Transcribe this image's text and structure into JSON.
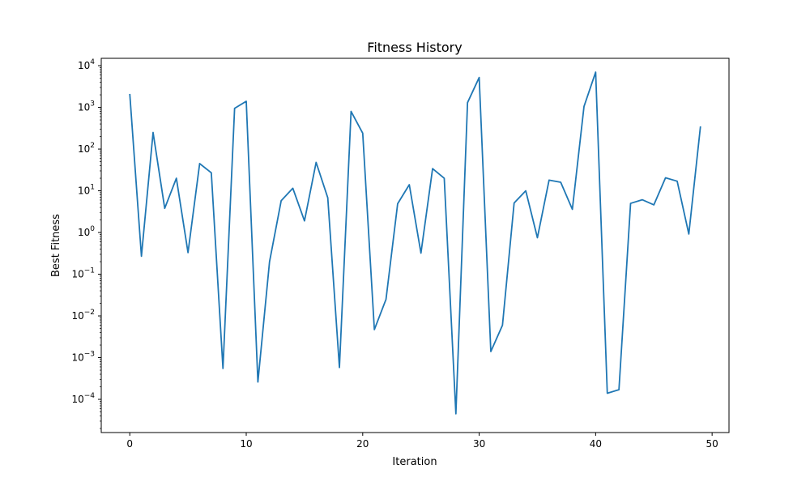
{
  "chart_data": {
    "type": "line",
    "title": "Fitness History",
    "xlabel": "Iteration",
    "ylabel": "Best Fitness",
    "xlim": [
      -2.45,
      51.45
    ],
    "ylim": [
      1.6e-05,
      15000
    ],
    "yscale": "log",
    "grid": false,
    "line_color": "#1f77b4",
    "x_ticks": [
      0,
      10,
      20,
      30,
      40,
      50
    ],
    "x_tick_labels": [
      "0",
      "10",
      "20",
      "30",
      "40",
      "50"
    ],
    "y_ticks": [
      {
        "value": 0.0001,
        "base": "10",
        "exp": "−4"
      },
      {
        "value": 0.001,
        "base": "10",
        "exp": "−3"
      },
      {
        "value": 0.01,
        "base": "10",
        "exp": "−2"
      },
      {
        "value": 0.1,
        "base": "10",
        "exp": "−1"
      },
      {
        "value": 1,
        "base": "10",
        "exp": "0"
      },
      {
        "value": 10,
        "base": "10",
        "exp": "1"
      },
      {
        "value": 100,
        "base": "10",
        "exp": "2"
      },
      {
        "value": 1000,
        "base": "10",
        "exp": "3"
      },
      {
        "value": 10000,
        "base": "10",
        "exp": "4"
      }
    ],
    "x": [
      0,
      1,
      2,
      3,
      4,
      5,
      6,
      7,
      8,
      9,
      10,
      11,
      12,
      13,
      14,
      15,
      16,
      17,
      18,
      19,
      20,
      21,
      22,
      23,
      24,
      25,
      26,
      27,
      28,
      29,
      30,
      31,
      32,
      33,
      34,
      35,
      36,
      37,
      38,
      39,
      40,
      41,
      42,
      43,
      44,
      45,
      46,
      47,
      48,
      49
    ],
    "values": [
      2100,
      0.27,
      250,
      3.8,
      20,
      0.33,
      45,
      27,
      0.00055,
      950,
      1400,
      0.00026,
      0.2,
      5.8,
      11.5,
      1.9,
      48,
      6.8,
      0.00058,
      800,
      240,
      0.0047,
      0.025,
      4.9,
      14,
      0.32,
      34,
      20,
      4.5e-05,
      1300,
      5200,
      0.0014,
      0.006,
      5.1,
      10,
      0.75,
      18,
      16,
      3.6,
      1050,
      7000,
      0.00014,
      0.00017,
      5.0,
      6.1,
      4.6,
      20.5,
      17,
      0.92,
      350
    ]
  }
}
